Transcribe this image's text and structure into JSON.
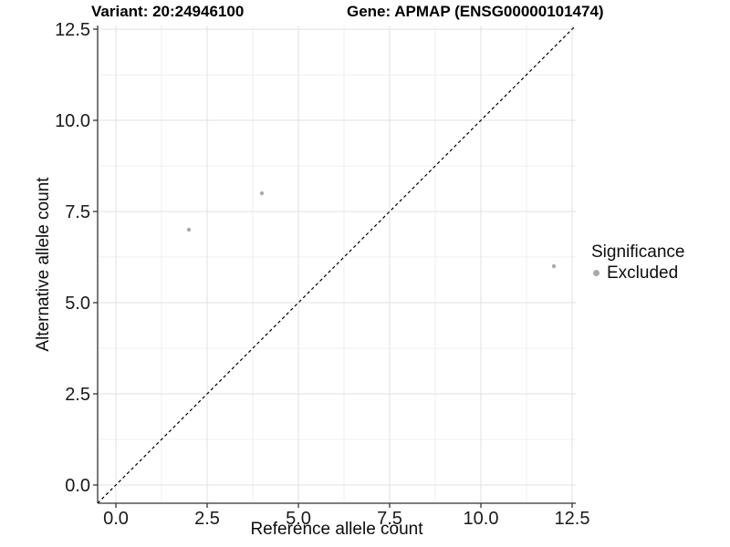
{
  "chart_data": {
    "type": "scatter",
    "titles": {
      "left": "Variant: 20:24946100",
      "right": "Gene: APMAP (ENSG00000101474)"
    },
    "xlabel": "Reference allele count",
    "ylabel": "Alternative allele count",
    "xlim": [
      -0.5,
      12.6
    ],
    "ylim": [
      -0.5,
      12.6
    ],
    "grid": true,
    "x_ticks": {
      "values": [
        0,
        2.5,
        5,
        7.5,
        10,
        12.5
      ],
      "labels": [
        "0.0",
        "2.5",
        "5.0",
        "7.5",
        "10.0",
        "12.5"
      ]
    },
    "y_ticks": {
      "values": [
        0,
        2.5,
        5,
        7.5,
        10,
        12.5
      ],
      "labels": [
        "0.0",
        "2.5",
        "5.0",
        "7.5",
        "10.0",
        "12.5"
      ]
    },
    "minor_ticks": [
      1.25,
      3.75,
      6.25,
      8.75,
      11.25
    ],
    "series": [
      {
        "name": "Excluded",
        "marker": "circle",
        "color": "#ababab",
        "points": [
          {
            "x": 2,
            "y": 7
          },
          {
            "x": 4,
            "y": 8
          },
          {
            "x": 12,
            "y": 6
          }
        ]
      }
    ],
    "reference_line": {
      "type": "identity",
      "style": "dashed",
      "color": "#000000"
    },
    "legend": {
      "title": "Significance",
      "position": "right",
      "items": [
        {
          "label": "Excluded",
          "color": "#ababab",
          "marker": "circle"
        }
      ]
    },
    "colors": {
      "grid_major": "#e2e2e2",
      "grid_minor": "#efefef",
      "axis_line": "#333333",
      "tick_text": "#1a1a1a",
      "point": "#ababab"
    }
  }
}
